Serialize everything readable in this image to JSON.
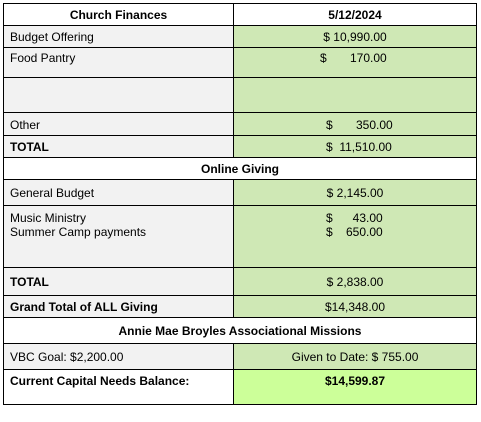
{
  "header": {
    "left": "Church Finances",
    "right": "5/12/2024"
  },
  "offering": {
    "budget_label": "Budget Offering",
    "budget_value": "$ 10,990.00",
    "food_label": "Food Pantry",
    "food_value": "$       170.00",
    "other_label": "Other",
    "other_value": "$       350.00",
    "total_label": "TOTAL",
    "total_value": "$  11,510.00"
  },
  "online": {
    "section_title": "Online Giving",
    "general_label": "General Budget",
    "general_value": "$ 2,145.00",
    "music_label": "Music Ministry",
    "music_value": "$      43.00",
    "camp_label": "Summer Camp payments",
    "camp_value": "$    650.00",
    "total_label": "TOTAL",
    "total_value": "$ 2,838.00"
  },
  "grand": {
    "label": "Grand Total of ALL Giving",
    "value": "$14,348.00"
  },
  "missions": {
    "section_title": "Annie Mae Broyles Associational Missions",
    "goal_label": "VBC Goal: $2,200.00",
    "given_label": "Given to Date: $ 755.00"
  },
  "capital": {
    "label": "Current Capital Needs Balance:",
    "value": "$14,599.87"
  },
  "colors": {
    "green": "#cfe8b5",
    "bright_green": "#ccff99",
    "gray": "#f2f2f2"
  }
}
